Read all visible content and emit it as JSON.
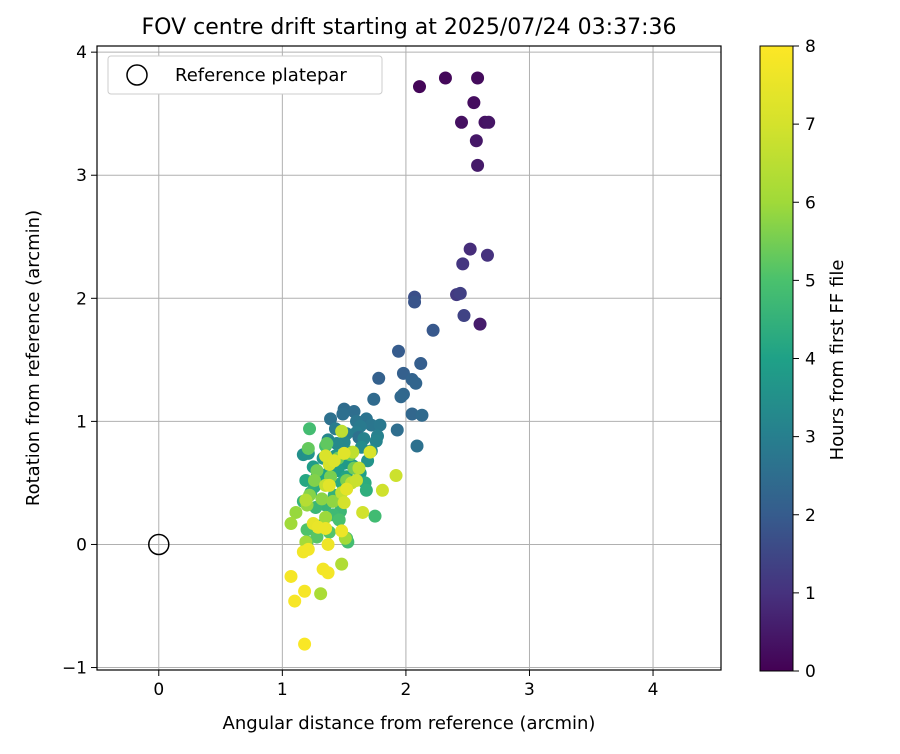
{
  "chart_data": {
    "type": "scatter",
    "title": "FOV centre drift starting at 2025/07/24 03:37:36",
    "xlabel": "Angular distance from reference (arcmin)",
    "ylabel": "Rotation from reference (arcmin)",
    "xlim": [
      -0.5,
      4.55
    ],
    "ylim": [
      -1.02,
      4.05
    ],
    "xticks": [
      0,
      1,
      2,
      3,
      4
    ],
    "yticks": [
      -1,
      0,
      1,
      2,
      3,
      4
    ],
    "xtick_labels": [
      "0",
      "1",
      "2",
      "3",
      "4"
    ],
    "ytick_labels": [
      "−1",
      "0",
      "1",
      "2",
      "3",
      "4"
    ],
    "grid": true,
    "legend": {
      "position": "top-left",
      "entries": [
        {
          "label": "Reference platepar",
          "marker": "open-circle"
        }
      ]
    },
    "reference_point": {
      "x": 0,
      "y": 0
    },
    "colorbar": {
      "label": "Hours from first FF file",
      "range": [
        0,
        8
      ],
      "ticks": [
        0,
        1,
        2,
        3,
        4,
        5,
        6,
        7,
        8
      ],
      "tick_labels": [
        "0",
        "1",
        "2",
        "3",
        "4",
        "5",
        "6",
        "7",
        "8"
      ],
      "colormap": "viridis"
    },
    "points": [
      [
        2.11,
        3.72,
        0.1
      ],
      [
        2.32,
        3.79,
        0.15
      ],
      [
        2.58,
        3.79,
        0.2
      ],
      [
        2.55,
        3.59,
        0.25
      ],
      [
        2.45,
        3.43,
        0.3
      ],
      [
        2.64,
        3.43,
        0.35
      ],
      [
        2.67,
        3.43,
        0.4
      ],
      [
        2.57,
        3.28,
        0.45
      ],
      [
        2.58,
        3.08,
        0.5
      ],
      [
        2.6,
        1.79,
        0.55
      ],
      [
        2.52,
        2.4,
        0.9
      ],
      [
        2.66,
        2.35,
        1.0
      ],
      [
        2.46,
        2.28,
        1.1
      ],
      [
        2.41,
        2.03,
        1.2
      ],
      [
        2.44,
        2.04,
        1.3
      ],
      [
        2.47,
        1.86,
        1.4
      ],
      [
        2.07,
        2.01,
        1.7
      ],
      [
        2.07,
        1.97,
        1.8
      ],
      [
        2.22,
        1.74,
        1.9
      ],
      [
        1.94,
        1.57,
        2.0
      ],
      [
        2.12,
        1.47,
        2.05
      ],
      [
        1.98,
        1.39,
        2.1
      ],
      [
        1.78,
        1.35,
        2.15
      ],
      [
        2.05,
        1.34,
        2.2
      ],
      [
        2.08,
        1.31,
        2.25
      ],
      [
        1.98,
        1.22,
        2.3
      ],
      [
        1.96,
        1.2,
        2.35
      ],
      [
        1.74,
        1.18,
        2.4
      ],
      [
        1.5,
        1.1,
        2.45
      ],
      [
        1.58,
        1.08,
        2.5
      ],
      [
        2.05,
        1.06,
        2.3
      ],
      [
        2.13,
        1.05,
        2.4
      ],
      [
        1.49,
        1.06,
        2.55
      ],
      [
        1.39,
        1.02,
        2.6
      ],
      [
        1.68,
        1.02,
        2.65
      ],
      [
        1.6,
        1.0,
        2.7
      ],
      [
        1.72,
        0.97,
        2.75
      ],
      [
        1.79,
        0.97,
        2.8
      ],
      [
        1.63,
        0.96,
        2.85
      ],
      [
        1.43,
        0.94,
        2.9
      ],
      [
        1.93,
        0.93,
        2.5
      ],
      [
        1.6,
        0.91,
        2.95
      ],
      [
        1.52,
        0.9,
        3.0
      ],
      [
        1.77,
        0.88,
        3.05
      ],
      [
        1.62,
        0.87,
        2.6
      ],
      [
        1.66,
        0.86,
        3.1
      ],
      [
        1.76,
        0.84,
        3.15
      ],
      [
        1.37,
        0.85,
        3.2
      ],
      [
        1.5,
        0.83,
        3.25
      ],
      [
        1.44,
        0.82,
        3.3
      ],
      [
        2.09,
        0.8,
        2.6
      ],
      [
        1.64,
        0.79,
        3.35
      ],
      [
        1.72,
        0.76,
        3.4
      ],
      [
        1.54,
        0.75,
        3.45
      ],
      [
        1.17,
        0.73,
        3.5
      ],
      [
        1.21,
        0.74,
        3.55
      ],
      [
        1.69,
        0.68,
        3.6
      ],
      [
        1.43,
        0.72,
        3.65
      ],
      [
        1.33,
        0.7,
        3.7
      ],
      [
        1.5,
        0.66,
        3.75
      ],
      [
        1.57,
        0.64,
        3.8
      ],
      [
        1.25,
        0.63,
        3.85
      ],
      [
        1.45,
        0.6,
        3.9
      ],
      [
        1.63,
        0.58,
        3.95
      ],
      [
        1.36,
        0.57,
        4.0
      ],
      [
        1.28,
        0.55,
        4.05
      ],
      [
        1.52,
        0.55,
        4.1
      ],
      [
        1.19,
        0.52,
        4.15
      ],
      [
        1.38,
        0.52,
        4.2
      ],
      [
        1.48,
        0.5,
        4.25
      ],
      [
        1.67,
        0.5,
        4.3
      ],
      [
        1.26,
        0.47,
        4.35
      ],
      [
        1.68,
        0.44,
        4.4
      ],
      [
        1.23,
        0.42,
        4.45
      ],
      [
        1.42,
        0.4,
        4.5
      ],
      [
        1.17,
        0.35,
        4.55
      ],
      [
        1.35,
        0.32,
        4.6
      ],
      [
        1.27,
        0.3,
        4.65
      ],
      [
        1.47,
        0.27,
        4.7
      ],
      [
        1.41,
        0.24,
        4.75
      ],
      [
        1.75,
        0.23,
        4.8
      ],
      [
        1.53,
        0.02,
        4.85
      ],
      [
        1.52,
        0.05,
        4.9
      ],
      [
        1.22,
        0.94,
        4.85
      ],
      [
        1.35,
        0.8,
        4.9
      ],
      [
        1.46,
        0.2,
        4.95
      ],
      [
        1.3,
        0.15,
        5.0
      ],
      [
        1.2,
        0.12,
        5.05
      ],
      [
        1.38,
        0.1,
        5.1
      ],
      [
        1.28,
        0.06,
        5.15
      ],
      [
        1.2,
        0.02,
        5.2
      ],
      [
        1.36,
        0.82,
        5.25
      ],
      [
        1.21,
        0.78,
        5.3
      ],
      [
        1.55,
        0.73,
        5.35
      ],
      [
        1.45,
        0.7,
        5.4
      ],
      [
        1.58,
        0.62,
        5.45
      ],
      [
        1.28,
        0.6,
        5.5
      ],
      [
        1.39,
        0.55,
        5.55
      ],
      [
        1.52,
        0.52,
        5.6
      ],
      [
        1.26,
        0.52,
        5.65
      ],
      [
        1.22,
        0.4,
        5.7
      ],
      [
        1.32,
        0.37,
        5.75
      ],
      [
        1.41,
        0.35,
        5.8
      ],
      [
        1.2,
        0.32,
        5.85
      ],
      [
        1.11,
        0.26,
        5.9
      ],
      [
        1.35,
        0.22,
        5.95
      ],
      [
        1.07,
        0.17,
        6.0
      ],
      [
        1.51,
        0.05,
        6.05
      ],
      [
        1.19,
        0.02,
        6.1
      ],
      [
        1.31,
        -0.4,
        6.2
      ],
      [
        1.48,
        -0.16,
        6.3
      ],
      [
        1.19,
        0.36,
        6.4
      ],
      [
        1.62,
        0.62,
        6.5
      ],
      [
        1.48,
        0.92,
        6.55
      ],
      [
        1.57,
        0.75,
        6.6
      ],
      [
        1.56,
        0.5,
        6.65
      ],
      [
        1.48,
        0.42,
        6.7
      ],
      [
        1.35,
        0.48,
        6.75
      ],
      [
        1.6,
        0.52,
        6.8
      ],
      [
        1.92,
        0.56,
        6.85
      ],
      [
        1.81,
        0.44,
        6.9
      ],
      [
        1.65,
        0.26,
        6.95
      ],
      [
        1.5,
        0.34,
        7.0
      ],
      [
        1.38,
        0.65,
        7.05
      ],
      [
        1.71,
        0.75,
        7.1
      ],
      [
        1.35,
        0.72,
        7.15
      ],
      [
        1.42,
        0.68,
        7.2
      ],
      [
        1.5,
        0.74,
        7.3
      ],
      [
        1.38,
        0.48,
        7.35
      ],
      [
        1.52,
        0.45,
        7.4
      ],
      [
        1.25,
        0.17,
        7.45
      ],
      [
        1.29,
        0.14,
        7.5
      ],
      [
        1.35,
        0.13,
        7.55
      ],
      [
        1.48,
        0.11,
        7.6
      ],
      [
        1.37,
        0.0,
        7.65
      ],
      [
        1.17,
        -0.06,
        7.7
      ],
      [
        1.21,
        -0.04,
        7.72
      ],
      [
        1.33,
        -0.2,
        7.75
      ],
      [
        1.37,
        -0.23,
        7.78
      ],
      [
        1.07,
        -0.26,
        7.8
      ],
      [
        1.18,
        -0.38,
        7.82
      ],
      [
        1.1,
        -0.46,
        7.85
      ],
      [
        1.18,
        -0.81,
        7.9
      ]
    ]
  }
}
